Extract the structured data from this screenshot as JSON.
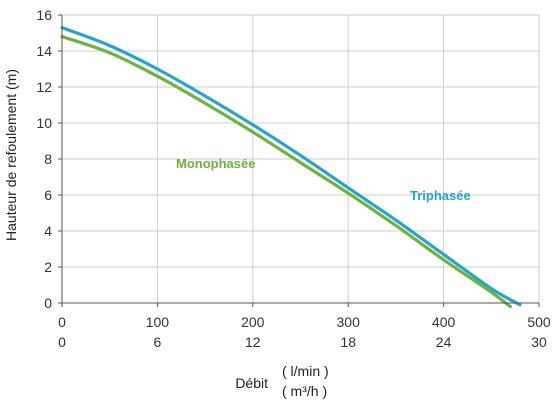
{
  "chart_data": {
    "type": "line",
    "ylabel": "Hauteur de refoulement (m)",
    "xlabel": "Débit",
    "xlabel_units": [
      "( l/min )",
      "( m³/h )"
    ],
    "xlim": [
      0,
      500
    ],
    "ylim": [
      0,
      16
    ],
    "grid": true,
    "x_ticks_primary": [
      "0",
      "100",
      "200",
      "300",
      "400",
      "500"
    ],
    "x_ticks_secondary": [
      "0",
      "6",
      "12",
      "18",
      "24",
      "30"
    ],
    "y_ticks": [
      "0",
      "2",
      "4",
      "6",
      "8",
      "10",
      "12",
      "14",
      "16"
    ],
    "series": [
      {
        "name": "Triphasée",
        "color": "#2aa3c9",
        "x": [
          0,
          50,
          100,
          150,
          200,
          250,
          300,
          350,
          400,
          450,
          480
        ],
        "y": [
          15.3,
          14.3,
          13.0,
          11.5,
          9.9,
          8.2,
          6.4,
          4.6,
          2.7,
          0.8,
          -0.1
        ]
      },
      {
        "name": "Monophasée",
        "color": "#6cb33f",
        "x": [
          0,
          50,
          100,
          150,
          200,
          250,
          300,
          350,
          400,
          450,
          470
        ],
        "y": [
          14.8,
          13.9,
          12.6,
          11.1,
          9.5,
          7.8,
          6.1,
          4.3,
          2.4,
          0.6,
          -0.2
        ]
      }
    ]
  }
}
